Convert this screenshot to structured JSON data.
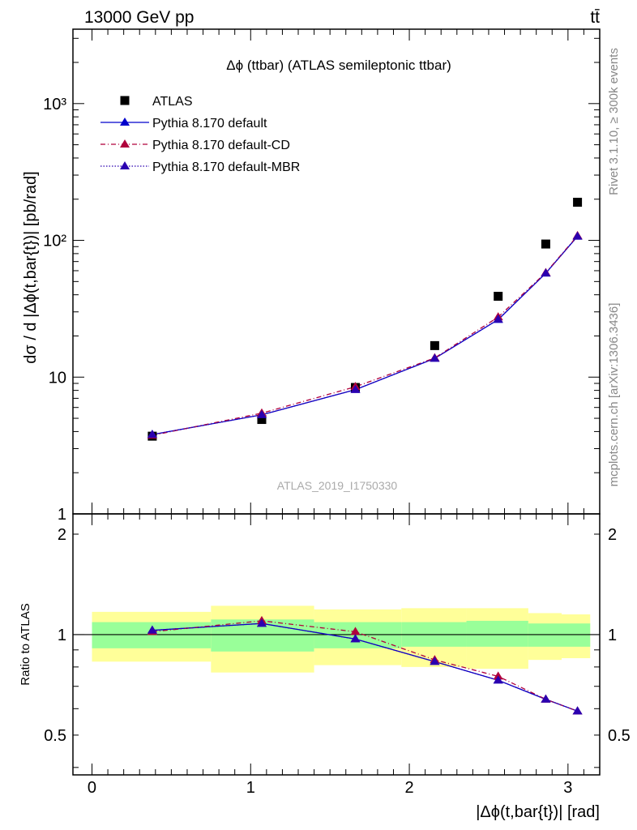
{
  "header": {
    "left": "13000 GeV pp",
    "right": "tt̄"
  },
  "side_labels": {
    "rivet": "Rivet 3.1.10, ≥ 300k events",
    "mcplots": "mcplots.cern.ch [arXiv:1306.3436]"
  },
  "colors": {
    "atlas": "#000000",
    "default": "#0000cc",
    "default_cd": "#b0003c",
    "default_mbr": "#2b00b0",
    "band_inner": "#99ff99",
    "band_outer": "#ffff99"
  },
  "chart_data": [
    {
      "type": "scatter",
      "title": "Δϕ (ttbar) (ATLAS semileptonic ttbar)",
      "ylabel": "dσ / d |Δϕ(t,bar{t})| [pb/rad]",
      "xlim": [
        -0.12,
        3.2
      ],
      "ylim": [
        1,
        3500
      ],
      "yscale": "log",
      "yticks": [
        {
          "value": 1,
          "label": "1"
        },
        {
          "value": 10,
          "label": "10"
        },
        {
          "value": 100,
          "label": "10²"
        },
        {
          "value": 1000,
          "label": "10³"
        }
      ],
      "watermark": "ATLAS_2019_I1750330",
      "legend_position": "top-left",
      "x": [
        0.38,
        1.07,
        1.66,
        2.16,
        2.56,
        2.86,
        3.06
      ],
      "series": [
        {
          "name": "ATLAS",
          "marker": "square",
          "line": "none",
          "values": [
            3.7,
            4.9,
            8.4,
            17.0,
            39.0,
            94.0,
            190.0
          ]
        },
        {
          "name": "Pythia 8.170 default",
          "marker": "triangle",
          "line": "solid",
          "values": [
            3.8,
            5.3,
            8.1,
            13.7,
            26.3,
            57.5,
            107.0
          ]
        },
        {
          "name": "Pythia 8.170 default-CD",
          "marker": "triangle",
          "line": "dashdot",
          "values": [
            3.75,
            5.45,
            8.5,
            13.8,
            27.5,
            58.0,
            108.0
          ]
        },
        {
          "name": "Pythia 8.170 default-MBR",
          "marker": "triangle",
          "line": "dotted",
          "values": [
            3.8,
            5.3,
            8.1,
            13.7,
            26.5,
            57.5,
            107.0
          ]
        }
      ]
    },
    {
      "type": "scatter",
      "xlabel": "|Δϕ(t,bar{t})| [rad]",
      "ylabel": "Ratio to ATLAS",
      "xlim": [
        -0.12,
        3.2
      ],
      "ylim": [
        0.38,
        2.3
      ],
      "yscale": "log",
      "yticks": [
        {
          "value": 0.5,
          "label": "0.5"
        },
        {
          "value": 1,
          "label": "1"
        },
        {
          "value": 2,
          "label": "2"
        }
      ],
      "xticks": [
        {
          "value": 0,
          "label": "0"
        },
        {
          "value": 1,
          "label": "1"
        },
        {
          "value": 2,
          "label": "2"
        },
        {
          "value": 3,
          "label": "3"
        }
      ],
      "reference_line": 1,
      "bands": [
        {
          "x0": 0.0,
          "x1": 0.75,
          "inner": [
            0.91,
            1.09
          ],
          "outer": [
            0.83,
            1.17
          ]
        },
        {
          "x0": 0.75,
          "x1": 1.4,
          "inner": [
            0.89,
            1.11
          ],
          "outer": [
            0.77,
            1.22
          ]
        },
        {
          "x0": 1.4,
          "x1": 1.95,
          "inner": [
            0.91,
            1.09
          ],
          "outer": [
            0.81,
            1.19
          ]
        },
        {
          "x0": 1.95,
          "x1": 2.36,
          "inner": [
            0.92,
            1.09
          ],
          "outer": [
            0.8,
            1.2
          ]
        },
        {
          "x0": 2.36,
          "x1": 2.75,
          "inner": [
            0.92,
            1.1
          ],
          "outer": [
            0.79,
            1.2
          ]
        },
        {
          "x0": 2.75,
          "x1": 2.96,
          "inner": [
            0.92,
            1.08
          ],
          "outer": [
            0.84,
            1.16
          ]
        },
        {
          "x0": 2.96,
          "x1": 3.14,
          "inner": [
            0.92,
            1.08
          ],
          "outer": [
            0.85,
            1.15
          ]
        }
      ],
      "x": [
        0.38,
        1.07,
        1.66,
        2.16,
        2.56,
        2.86,
        3.06
      ],
      "series": [
        {
          "name": "Pythia 8.170 default",
          "marker": "triangle",
          "line": "solid",
          "values": [
            1.03,
            1.08,
            0.97,
            0.83,
            0.73,
            0.64,
            0.59
          ]
        },
        {
          "name": "Pythia 8.170 default-CD",
          "marker": "triangle",
          "line": "dashdot",
          "values": [
            1.02,
            1.1,
            1.02,
            0.84,
            0.75,
            0.64,
            0.59
          ]
        },
        {
          "name": "Pythia 8.170 default-MBR",
          "marker": "triangle",
          "line": "dotted",
          "values": [
            1.03,
            1.08,
            0.97,
            0.83,
            0.73,
            0.64,
            0.59
          ]
        }
      ]
    }
  ]
}
